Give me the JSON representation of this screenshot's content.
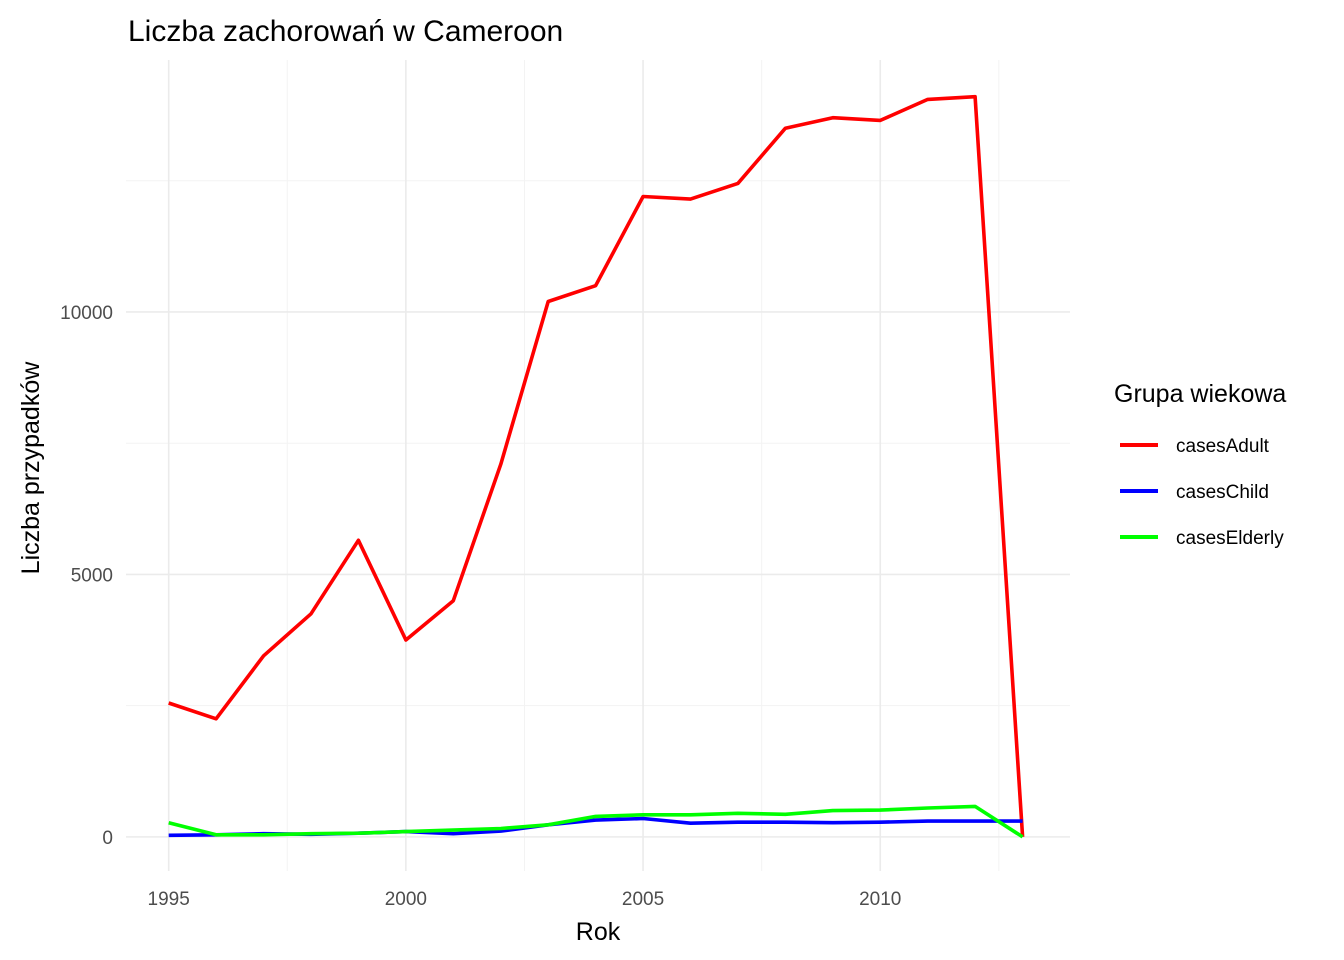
{
  "chart_data": {
    "type": "line",
    "title": "Liczba zachorowań w Cameroon",
    "xlabel": "Rok",
    "ylabel": "Liczba przypadków",
    "x": [
      1995,
      1996,
      1997,
      1998,
      1999,
      2000,
      2001,
      2002,
      2003,
      2004,
      2005,
      2006,
      2007,
      2008,
      2009,
      2010,
      2011,
      2012,
      2013
    ],
    "xlim": [
      1994.1,
      2014.0
    ],
    "ylim": [
      -650,
      14800
    ],
    "x_ticks": [
      1995,
      2000,
      2005,
      2010
    ],
    "x_tick_labels": [
      "1995",
      "2000",
      "2005",
      "2010"
    ],
    "y_ticks": [
      0,
      5000,
      10000
    ],
    "y_tick_labels": [
      "0",
      "5000",
      "10000"
    ],
    "grid": true,
    "legend": {
      "title": "Grupa wiekowa",
      "position": "right"
    },
    "series": [
      {
        "name": "casesAdult",
        "color": "#ff0000",
        "values": [
          2550,
          2250,
          3450,
          4250,
          5650,
          3750,
          4500,
          7100,
          10200,
          10500,
          12200,
          12150,
          12450,
          13500,
          13700,
          13650,
          14050,
          14100,
          0
        ]
      },
      {
        "name": "casesChild",
        "color": "#0000ff",
        "values": [
          30,
          40,
          60,
          50,
          70,
          100,
          60,
          110,
          230,
          320,
          350,
          260,
          280,
          280,
          270,
          280,
          300,
          300,
          300
        ]
      },
      {
        "name": "casesElderly",
        "color": "#00ff00",
        "values": [
          270,
          40,
          40,
          60,
          70,
          100,
          130,
          160,
          230,
          390,
          420,
          420,
          450,
          430,
          500,
          510,
          550,
          580,
          0
        ]
      }
    ]
  }
}
